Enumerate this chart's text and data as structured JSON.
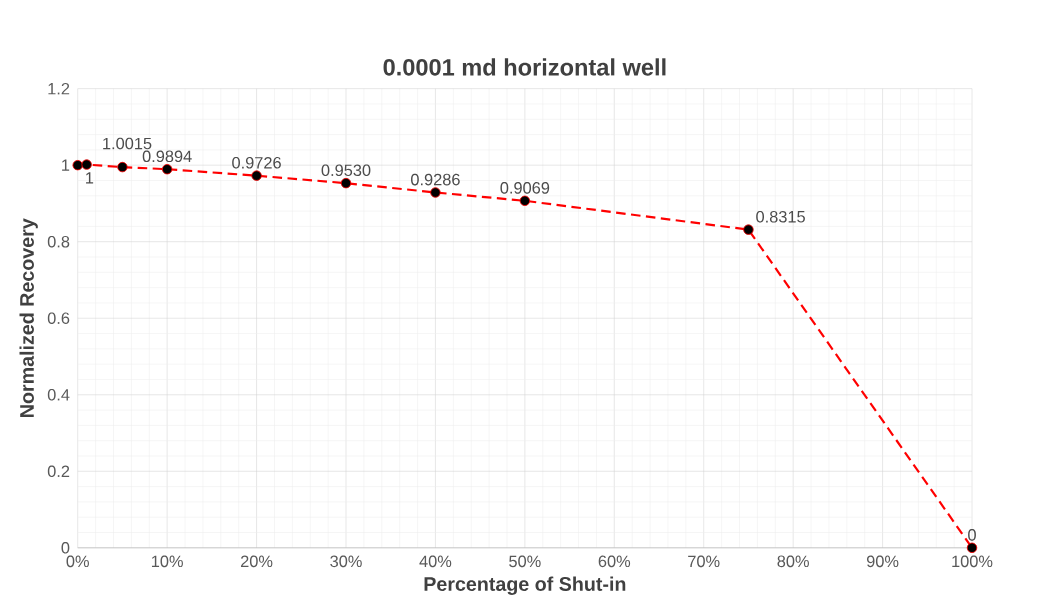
{
  "chart_data": {
    "type": "line",
    "title": "0.0001 md horizontal well",
    "xlabel": "Percentage of Shut-in",
    "ylabel": "Normalized Recovery",
    "x": [
      0,
      1,
      5,
      10,
      20,
      30,
      40,
      50,
      75,
      100
    ],
    "series": [
      {
        "color": "#ff0000",
        "values": [
          1,
          1.0015,
          0.995,
          0.9894,
          0.9726,
          0.953,
          0.9286,
          0.9069,
          0.8315,
          0
        ],
        "value_labels": [
          "1",
          "1.0015",
          null,
          "0.9894",
          "0.9726",
          "0.9530",
          "0.9286",
          "0.9069",
          "0.8315",
          "0"
        ]
      }
    ],
    "xlim": [
      0,
      100
    ],
    "ylim": [
      0,
      1.2
    ],
    "xticks": [
      {
        "value": 0,
        "label": "0%"
      },
      {
        "value": 10,
        "label": "10%"
      },
      {
        "value": 20,
        "label": "20%"
      },
      {
        "value": 30,
        "label": "30%"
      },
      {
        "value": 40,
        "label": "40%"
      },
      {
        "value": 50,
        "label": "50%"
      },
      {
        "value": 60,
        "label": "60%"
      },
      {
        "value": 70,
        "label": "70%"
      },
      {
        "value": 80,
        "label": "80%"
      },
      {
        "value": 90,
        "label": "90%"
      },
      {
        "value": 100,
        "label": "100%"
      }
    ],
    "yticks": [
      0,
      0.2,
      0.4,
      0.6,
      0.8,
      1,
      1.2
    ],
    "grid": true,
    "marker": "circle",
    "line_style": "dashed"
  }
}
